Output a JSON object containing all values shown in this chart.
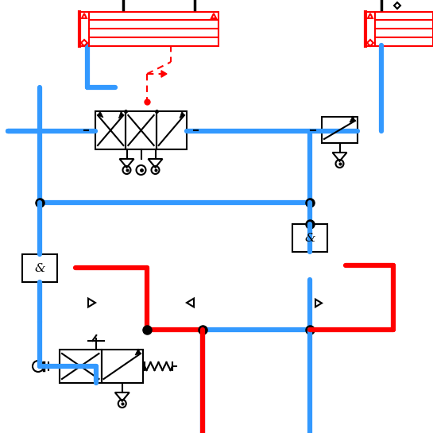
{
  "bg": "#ffffff",
  "blue": "#3399ff",
  "red": "#ff0000",
  "black": "#000000",
  "lw": 4.5,
  "lt": 1.5,
  "lm": 2.5
}
